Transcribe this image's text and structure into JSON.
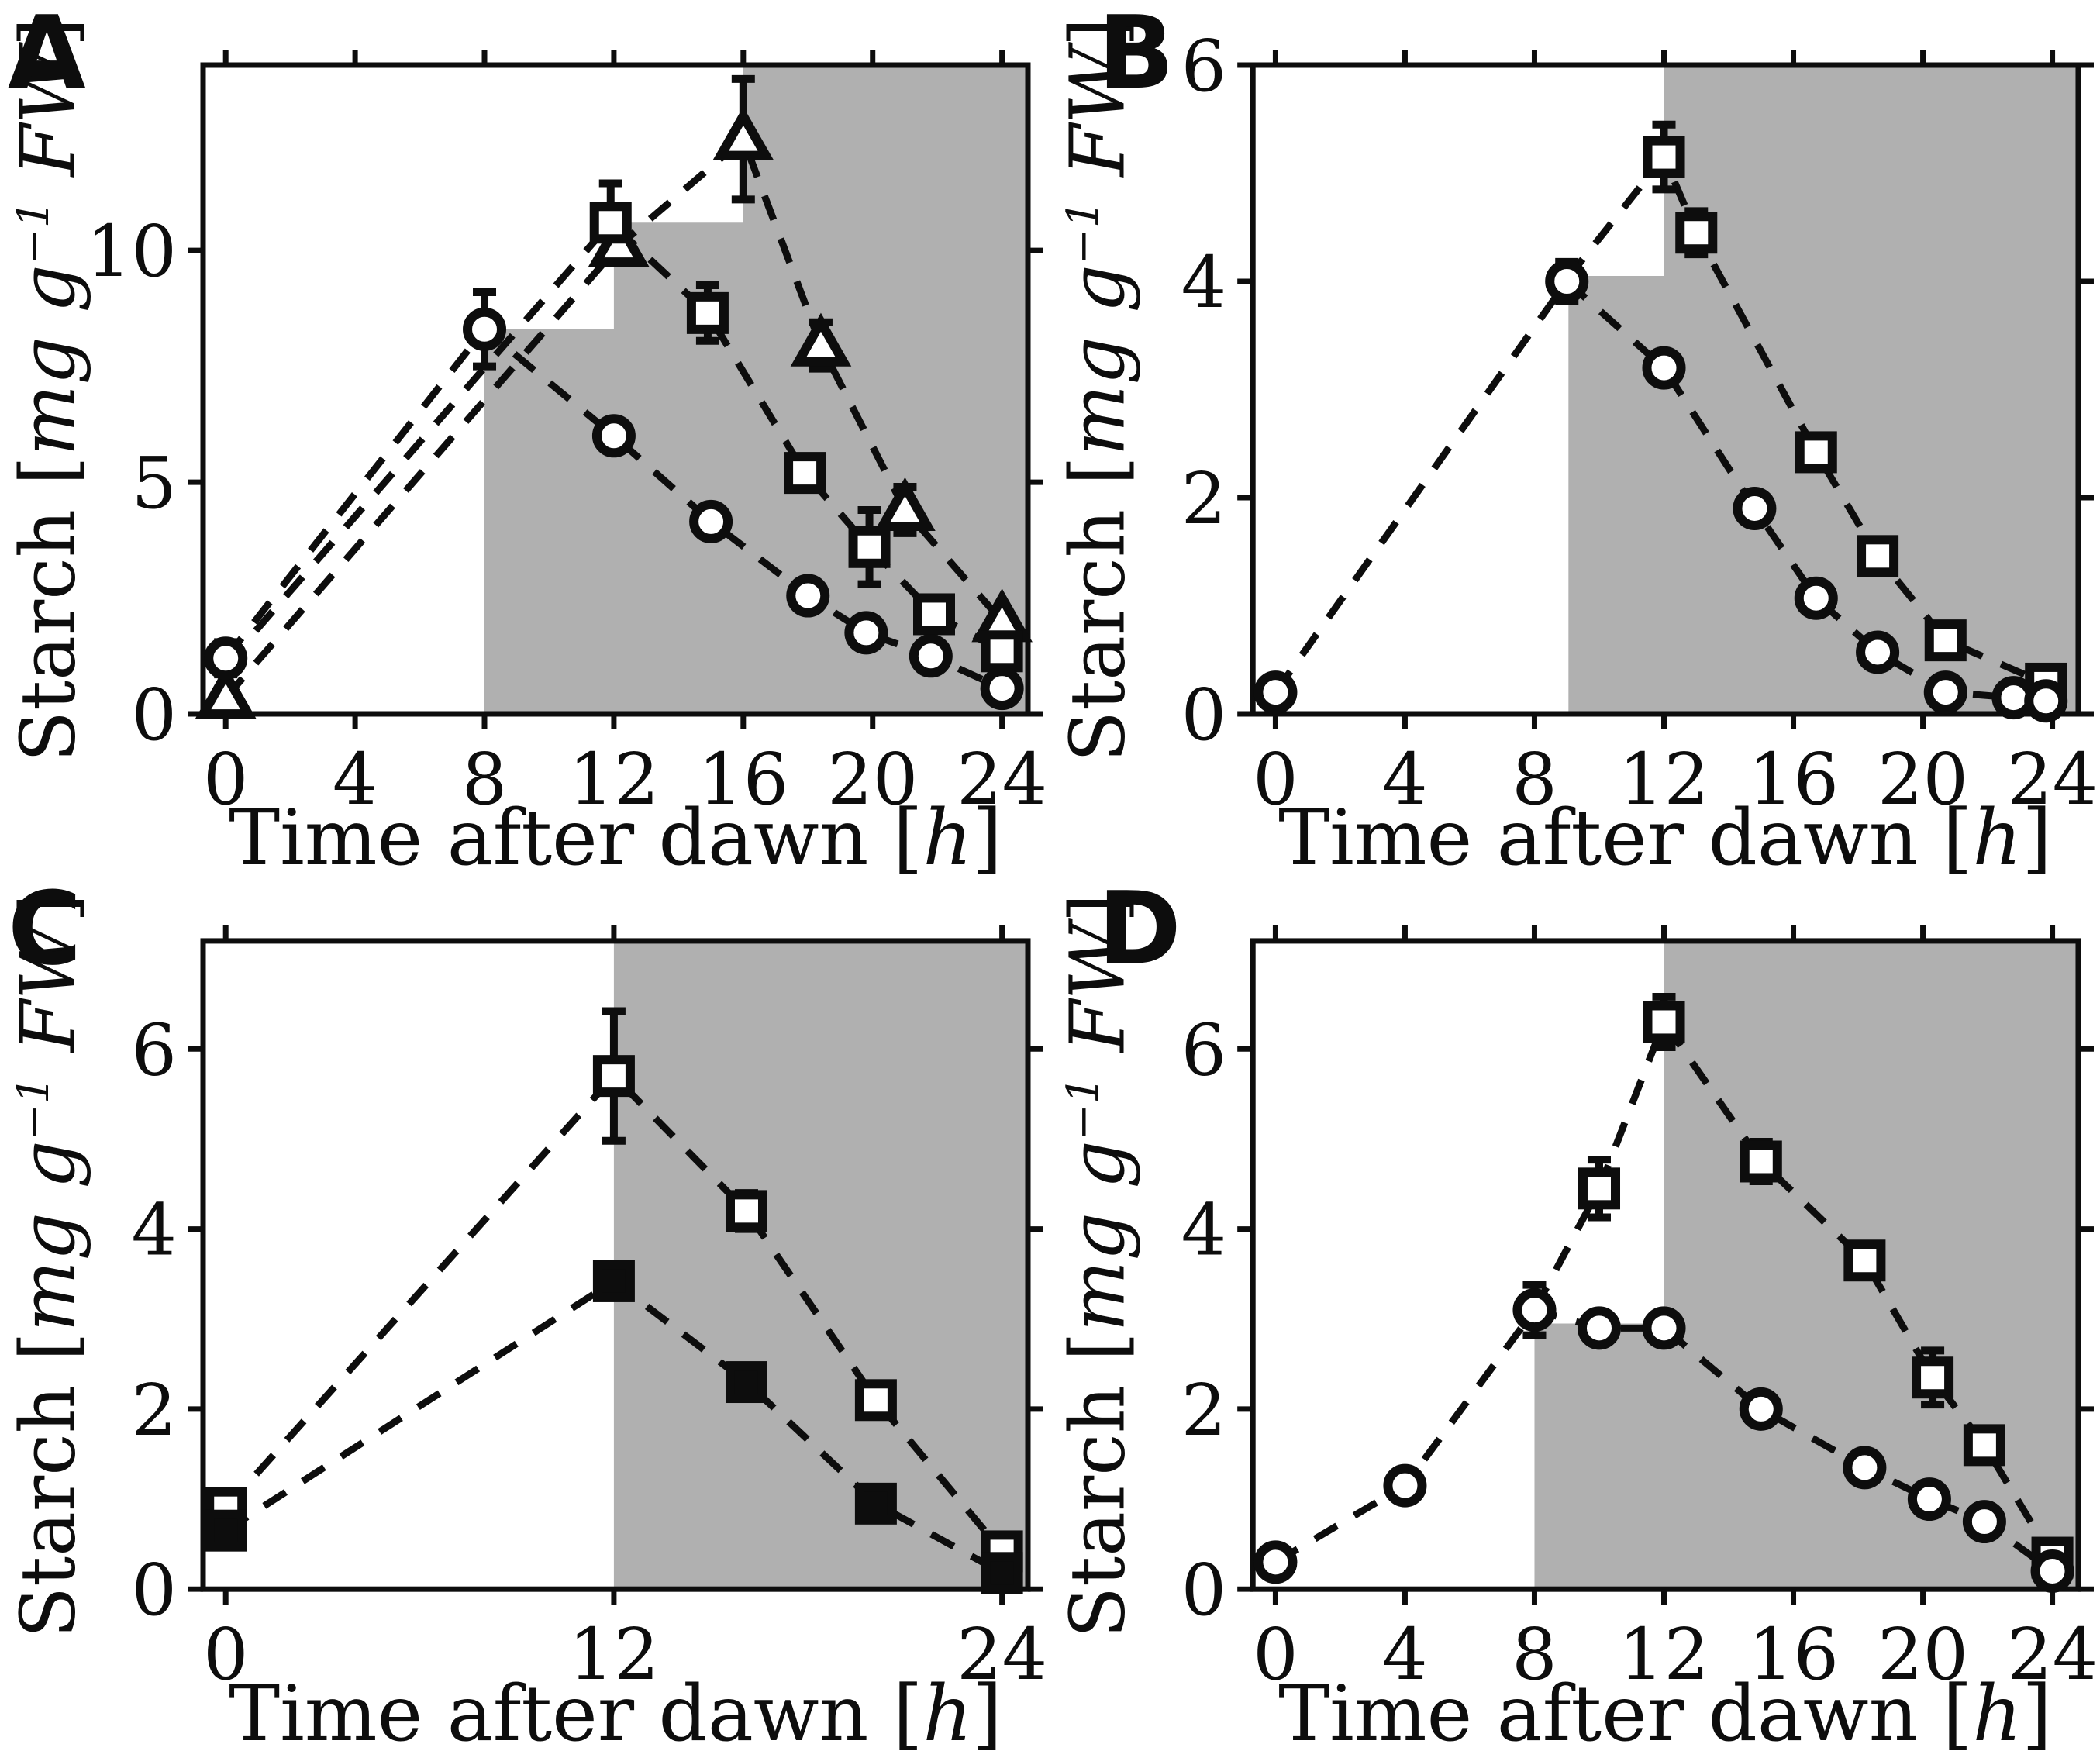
{
  "figure": {
    "background": "#ffffff",
    "night_color": "#b0b0b0",
    "ink": "#0d0d0d"
  },
  "chart_data": [
    {
      "letter": "A",
      "type": "line",
      "title": "",
      "xlabel": "Time after dawn [h]",
      "ylabel": "Starch [mg g−1 FW]",
      "xlabel_parts": [
        {
          "t": "Time after dawn ["
        },
        {
          "t": "h",
          "i": true
        },
        {
          "t": "]"
        }
      ],
      "ylabel_parts": [
        {
          "t": "Starch ["
        },
        {
          "t": "mg g",
          "i": true
        },
        {
          "t": "−1",
          "i": true,
          "sup": true
        },
        {
          "t": " FW",
          "i": true
        },
        {
          "t": "]"
        }
      ],
      "xlim": [
        -0.7,
        24.8
      ],
      "ylim": [
        0,
        14
      ],
      "xticks": [
        0,
        4,
        8,
        12,
        16,
        20,
        24
      ],
      "yticks": [
        0,
        5,
        10
      ],
      "grid": false,
      "legend": "none",
      "night_steps": [
        [
          8,
          8.3
        ],
        [
          12,
          10.6
        ],
        [
          16,
          14
        ]
      ],
      "series": [
        {
          "name": "open-triangle-series",
          "marker": "triangle",
          "marker_fill": "white",
          "points": [
            {
              "x": 0,
              "y": 0.35
            },
            {
              "x": 12.15,
              "y": 10.1
            },
            {
              "x": 16,
              "y": 12.4,
              "e": 1.3
            },
            {
              "x": 18.4,
              "y": 7.95,
              "e": 0.5
            },
            {
              "x": 21,
              "y": 4.4,
              "e": 0.5
            },
            {
              "x": 24,
              "y": 2.0
            }
          ]
        },
        {
          "name": "open-square-series",
          "marker": "square",
          "marker_fill": "white",
          "points": [
            {
              "x": 0,
              "y": 1.05,
              "hide_marker": true
            },
            {
              "x": 11.9,
              "y": 10.6,
              "e": 0.85
            },
            {
              "x": 14.9,
              "y": 8.65,
              "e": 0.6
            },
            {
              "x": 17.9,
              "y": 5.2
            },
            {
              "x": 19.9,
              "y": 3.6,
              "e": 0.8
            },
            {
              "x": 21.9,
              "y": 2.15
            },
            {
              "x": 24,
              "y": 1.35
            }
          ]
        },
        {
          "name": "open-circle-series",
          "marker": "circle",
          "marker_fill": "white",
          "points": [
            {
              "x": 0,
              "y": 1.2,
              "e": 0.35
            },
            {
              "x": 8,
              "y": 8.3,
              "e": 0.8
            },
            {
              "x": 12,
              "y": 6.0
            },
            {
              "x": 15,
              "y": 4.15
            },
            {
              "x": 18,
              "y": 2.55
            },
            {
              "x": 19.8,
              "y": 1.75
            },
            {
              "x": 21.8,
              "y": 1.25
            },
            {
              "x": 24,
              "y": 0.55
            }
          ]
        }
      ]
    },
    {
      "letter": "B",
      "type": "line",
      "title": "",
      "xlabel": "Time after dawn [h]",
      "ylabel": "Starch [mg g−1 FW]",
      "xlabel_parts": [
        {
          "t": "Time after dawn ["
        },
        {
          "t": "h",
          "i": true
        },
        {
          "t": "]"
        }
      ],
      "ylabel_parts": [
        {
          "t": "Starch ["
        },
        {
          "t": "mg g",
          "i": true
        },
        {
          "t": "−1",
          "i": true,
          "sup": true
        },
        {
          "t": " FW",
          "i": true
        },
        {
          "t": "]"
        }
      ],
      "xlim": [
        -0.7,
        24.8
      ],
      "ylim": [
        0,
        6
      ],
      "xticks": [
        0,
        4,
        8,
        12,
        16,
        20,
        24
      ],
      "yticks": [
        0,
        2,
        4,
        6
      ],
      "grid": false,
      "legend": "none",
      "night_steps": [
        [
          9.05,
          4.05
        ],
        [
          12,
          6
        ]
      ],
      "series": [
        {
          "name": "open-square-series",
          "marker": "square",
          "marker_fill": "white",
          "points": [
            {
              "x": 9,
              "y": 4.02,
              "hide_marker": true
            },
            {
              "x": 12,
              "y": 5.15,
              "e": 0.3
            },
            {
              "x": 13,
              "y": 4.45,
              "e": 0.2
            },
            {
              "x": 16.7,
              "y": 2.42
            },
            {
              "x": 18.6,
              "y": 1.46
            },
            {
              "x": 20.7,
              "y": 0.68
            },
            {
              "x": 23.8,
              "y": 0.28,
              "e": 0.1
            }
          ]
        },
        {
          "name": "open-circle-series",
          "marker": "circle",
          "marker_fill": "white",
          "points": [
            {
              "x": 0,
              "y": 0.2,
              "e": 0.12
            },
            {
              "x": 9,
              "y": 4.0,
              "e": 0.18
            },
            {
              "x": 12,
              "y": 3.2
            },
            {
              "x": 14.8,
              "y": 1.9
            },
            {
              "x": 16.7,
              "y": 1.07
            },
            {
              "x": 18.6,
              "y": 0.57
            },
            {
              "x": 20.7,
              "y": 0.2
            },
            {
              "x": 22.8,
              "y": 0.15
            },
            {
              "x": 23.8,
              "y": 0.12
            }
          ]
        }
      ]
    },
    {
      "letter": "C",
      "type": "line",
      "title": "",
      "xlabel": "Time after dawn [h]",
      "ylabel": "Starch [mg g−1 FW]",
      "xlabel_parts": [
        {
          "t": "Time after dawn ["
        },
        {
          "t": "h",
          "i": true
        },
        {
          "t": "]"
        }
      ],
      "ylabel_parts": [
        {
          "t": "Starch ["
        },
        {
          "t": "mg g",
          "i": true
        },
        {
          "t": "−1",
          "i": true,
          "sup": true
        },
        {
          "t": " FW",
          "i": true
        },
        {
          "t": "]"
        }
      ],
      "xlim": [
        -0.7,
        24.8
      ],
      "ylim": [
        0,
        7.2
      ],
      "xticks": [
        0,
        12,
        24
      ],
      "yticks": [
        0,
        2,
        4,
        6
      ],
      "grid": false,
      "legend": "none",
      "night_steps": [
        [
          12,
          7.2
        ]
      ],
      "series": [
        {
          "name": "open-square-series",
          "marker": "square",
          "marker_fill": "white",
          "points": [
            {
              "x": 0,
              "y": 0.9,
              "e": 0.15
            },
            {
              "x": 12,
              "y": 5.7,
              "e": 0.72
            },
            {
              "x": 16.1,
              "y": 4.2,
              "e": 0.2
            },
            {
              "x": 20.1,
              "y": 2.1,
              "e": 0.12
            },
            {
              "x": 24,
              "y": 0.42
            }
          ]
        },
        {
          "name": "filled-square-series",
          "marker": "square",
          "marker_fill": "black",
          "points": [
            {
              "x": 0,
              "y": 0.65,
              "e": 0.12
            },
            {
              "x": 12,
              "y": 3.42
            },
            {
              "x": 16.1,
              "y": 2.3
            },
            {
              "x": 20.1,
              "y": 0.95
            },
            {
              "x": 24,
              "y": 0.18
            }
          ]
        }
      ]
    },
    {
      "letter": "D",
      "type": "line",
      "title": "",
      "xlabel": "Time after dawn [h]",
      "ylabel": "Starch [mg g−1 FW]",
      "xlabel_parts": [
        {
          "t": "Time after dawn ["
        },
        {
          "t": "h",
          "i": true
        },
        {
          "t": "]"
        }
      ],
      "ylabel_parts": [
        {
          "t": "Starch ["
        },
        {
          "t": "mg g",
          "i": true
        },
        {
          "t": "−1",
          "i": true,
          "sup": true
        },
        {
          "t": " FW",
          "i": true
        },
        {
          "t": "]"
        }
      ],
      "xlim": [
        -0.7,
        24.8
      ],
      "ylim": [
        0,
        7.2
      ],
      "xticks": [
        0,
        4,
        8,
        12,
        16,
        20,
        24
      ],
      "yticks": [
        0,
        2,
        4,
        6
      ],
      "grid": false,
      "legend": "none",
      "night_steps": [
        [
          8,
          2.95
        ],
        [
          12,
          7.2
        ]
      ],
      "series": [
        {
          "name": "open-square-series",
          "marker": "square",
          "marker_fill": "white",
          "points": [
            {
              "x": 8,
              "y": 3.1,
              "hide_marker": true
            },
            {
              "x": 10,
              "y": 4.45,
              "e": 0.32
            },
            {
              "x": 12,
              "y": 6.3,
              "e": 0.28
            },
            {
              "x": 15,
              "y": 4.75,
              "e": 0.22
            },
            {
              "x": 18.2,
              "y": 3.65
            },
            {
              "x": 20.3,
              "y": 2.35,
              "e": 0.3
            },
            {
              "x": 21.9,
              "y": 1.6
            },
            {
              "x": 24,
              "y": 0.35,
              "e": 0.1
            }
          ]
        },
        {
          "name": "open-circle-series",
          "marker": "circle",
          "marker_fill": "white",
          "points": [
            {
              "x": 0,
              "y": 0.3,
              "e": 0.1
            },
            {
              "x": 4,
              "y": 1.15,
              "e": 0.12
            },
            {
              "x": 8,
              "y": 3.1,
              "e": 0.28
            },
            {
              "x": 10,
              "y": 2.9,
              "e": 0.12
            },
            {
              "x": 12,
              "y": 2.9,
              "e": 0.15
            },
            {
              "x": 15,
              "y": 2.0
            },
            {
              "x": 18.2,
              "y": 1.35
            },
            {
              "x": 20.2,
              "y": 1.0
            },
            {
              "x": 21.9,
              "y": 0.75
            },
            {
              "x": 24,
              "y": 0.2
            }
          ]
        }
      ]
    }
  ]
}
